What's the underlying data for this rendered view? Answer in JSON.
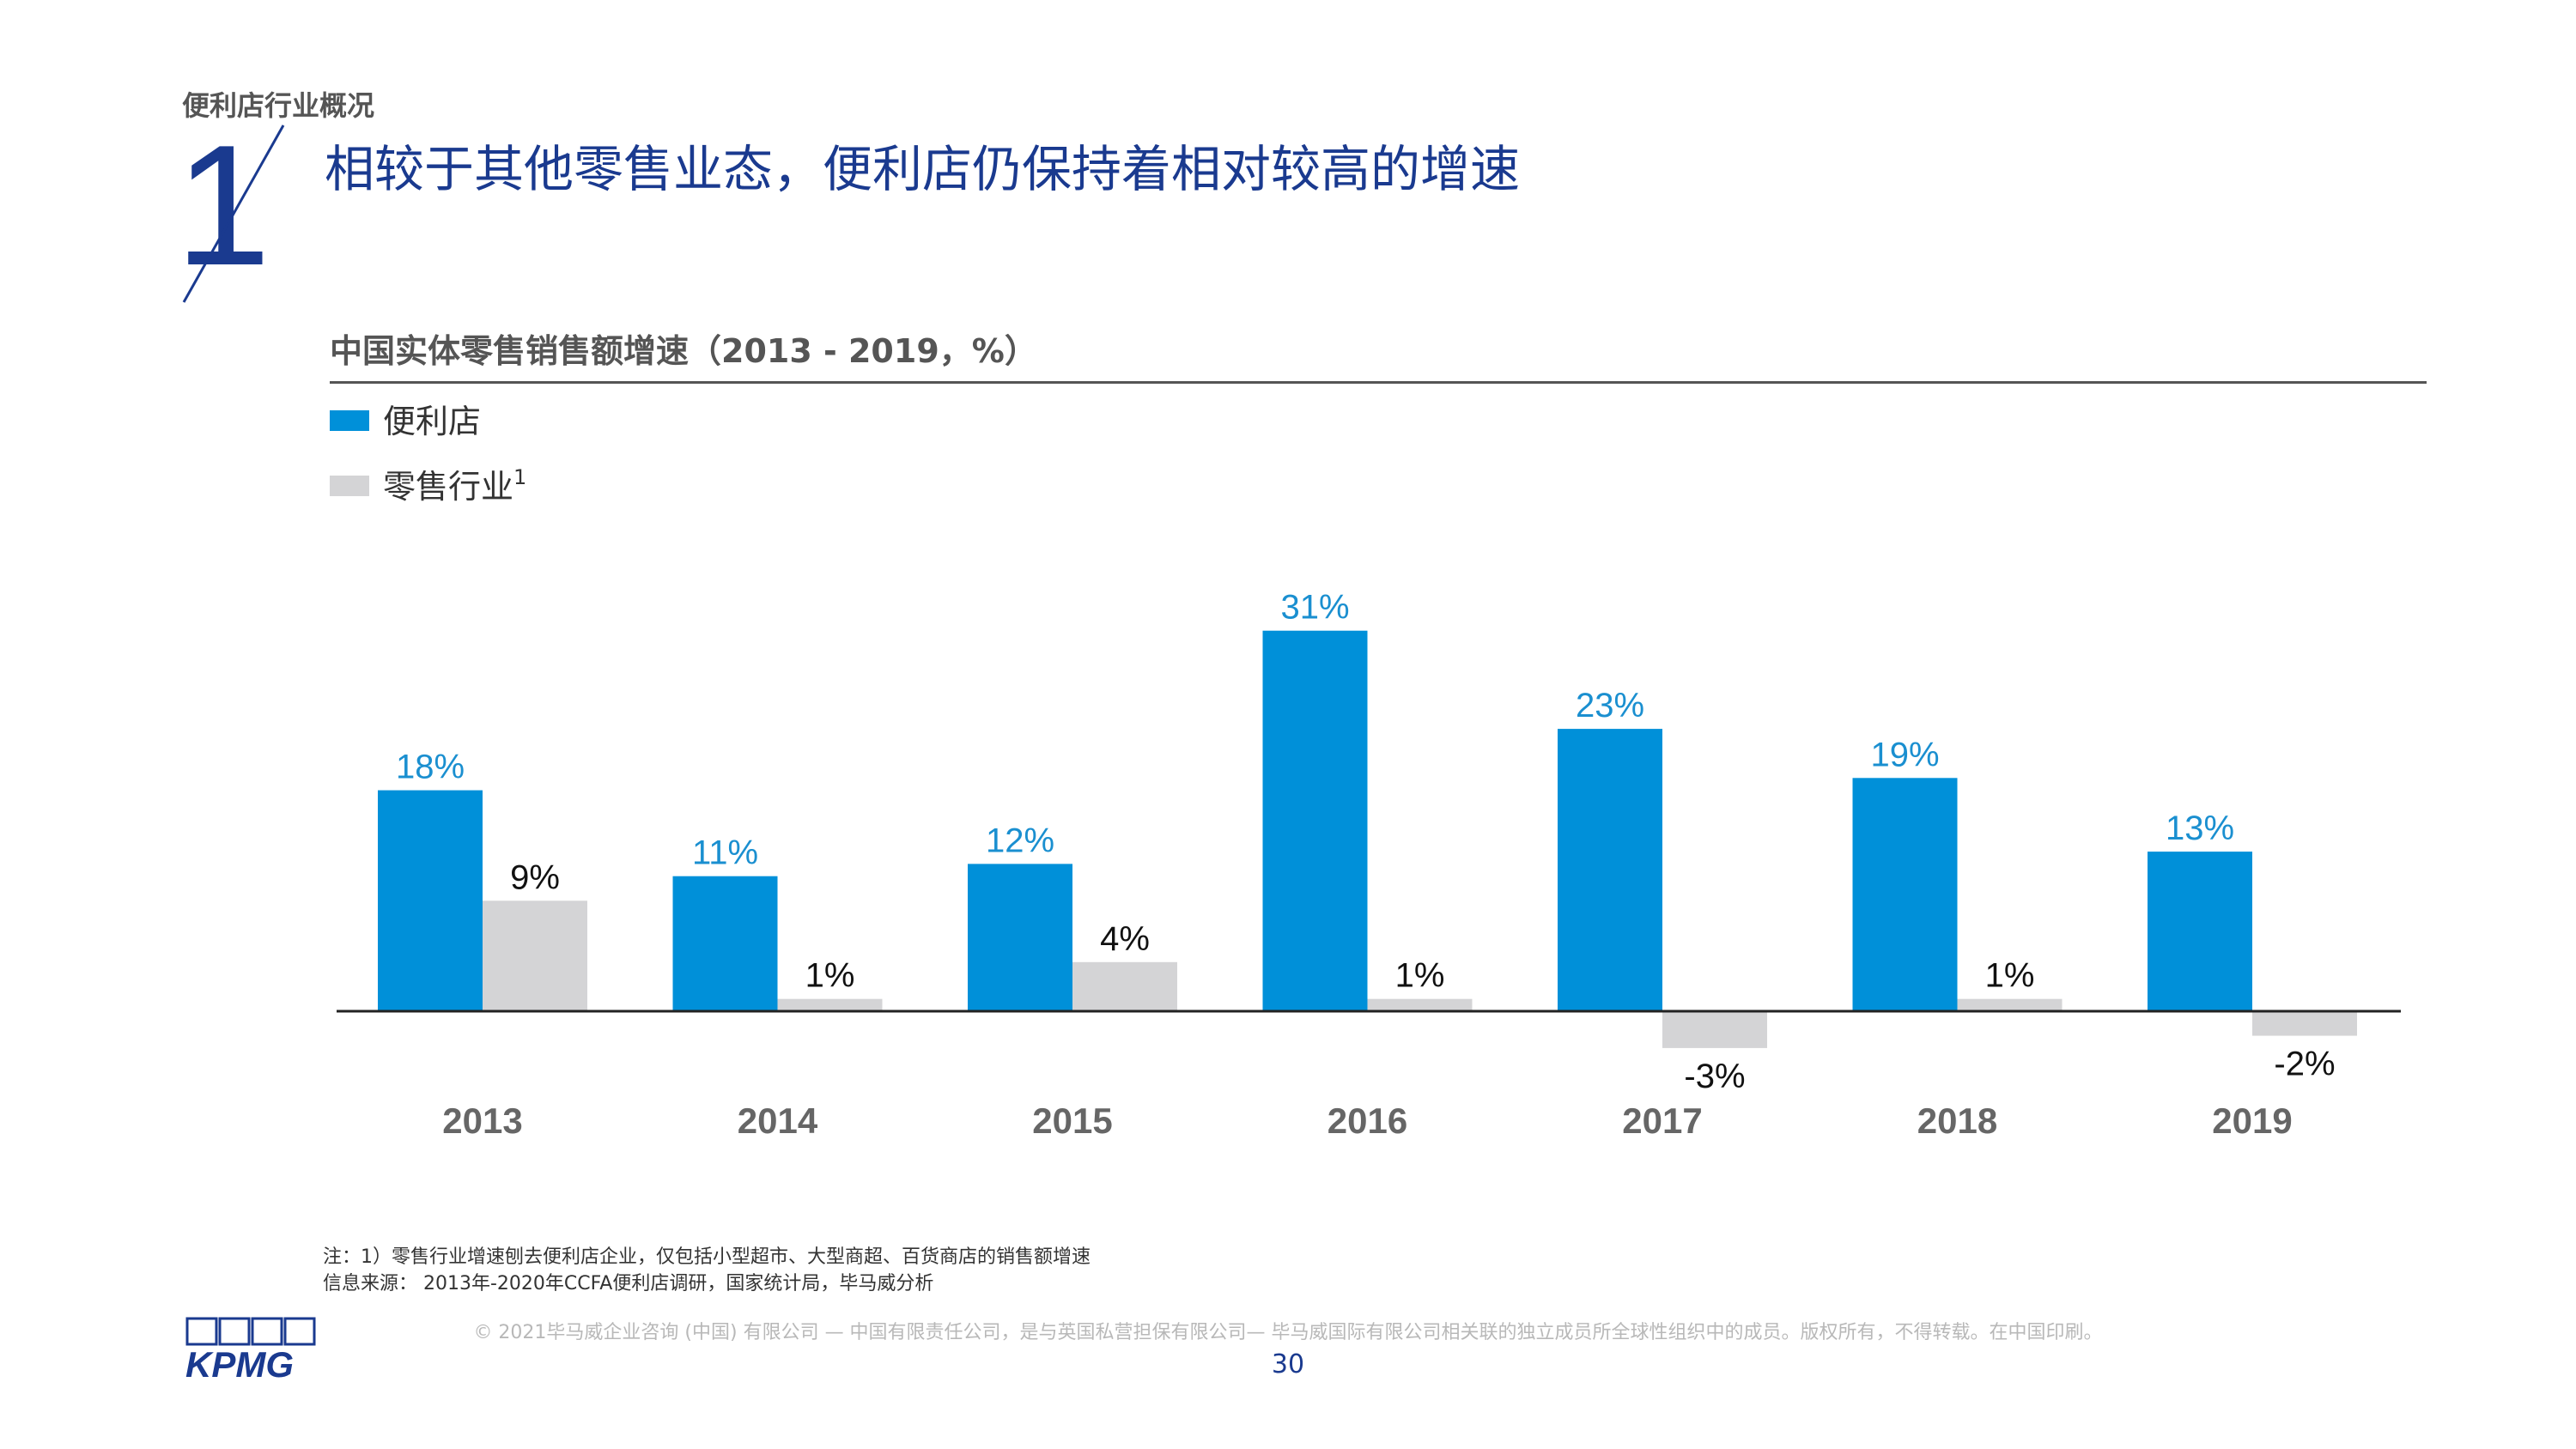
{
  "header": {
    "section_label": "便利店行业概况",
    "section_number": "1",
    "title": "相较于其他零售业态，便利店仍保持着相对较高的增速"
  },
  "colors": {
    "convenience": "#0090d9",
    "retail": "#d4d4d6",
    "convenience_label": "#1a8fd0",
    "retail_label": "#111111",
    "brand": "#1a3a8f"
  },
  "chart_data": {
    "type": "bar",
    "title": "中国实体零售销售额增速（2013 - 2019，%）",
    "categories": [
      "2013",
      "2014",
      "2015",
      "2016",
      "2017",
      "2018",
      "2019"
    ],
    "series": [
      {
        "name": "便利店",
        "values": [
          18,
          11,
          12,
          31,
          23,
          19,
          13
        ]
      },
      {
        "name": "零售行业",
        "name_superscript": "1",
        "values": [
          9,
          1,
          4,
          1,
          -3,
          1,
          -2
        ]
      }
    ],
    "value_suffix": "%",
    "xlabel": "",
    "ylabel": "",
    "grid": false,
    "legend_position": "top-left"
  },
  "footer": {
    "note": "注：1）零售行业增速刨去便利店企业，仅包括小型超市、大型商超、百货商店的销售额增速",
    "source": "信息来源： 2013年-2020年CCFA便利店调研，国家统计局，毕马威分析",
    "copyright": "© 2021毕马威企业咨询 (中国) 有限公司 — 中国有限责任公司，是与英国私营担保有限公司— 毕马威国际有限公司相关联的独立成员所全球性组织中的成员。版权所有，不得转载。在中国印刷。",
    "page_number": "30",
    "logo_text": "KPMG"
  }
}
